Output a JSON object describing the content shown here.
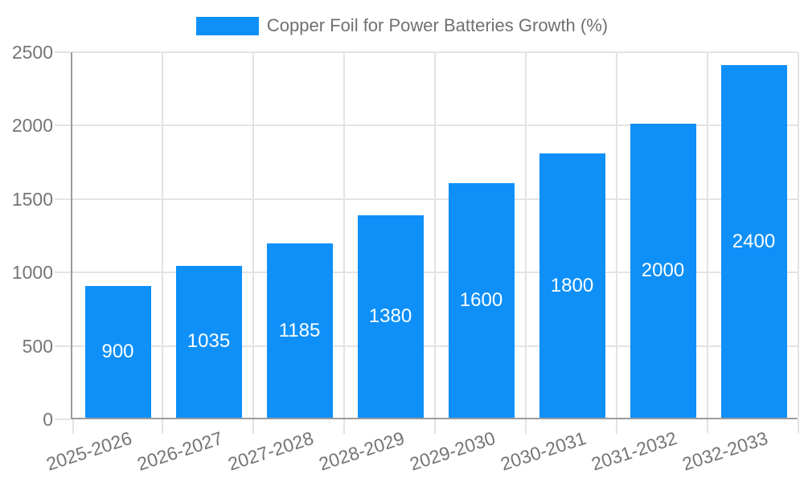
{
  "chart_data": {
    "type": "bar",
    "title": "Copper Foil for Power Batteries Growth (%)",
    "legend": [
      "Copper Foil for Power Batteries Growth (%)"
    ],
    "legend_position": "top-center",
    "categories": [
      "2025-2026",
      "2026-2027",
      "2027-2028",
      "2028-2029",
      "2029-2030",
      "2030-2031",
      "2031-2032",
      "2032-2033"
    ],
    "values": [
      900,
      1035,
      1185,
      1380,
      1600,
      1800,
      2000,
      2400
    ],
    "xlabel": "",
    "ylabel": "",
    "ylim": [
      0,
      2500
    ],
    "yticks": [
      0,
      500,
      1000,
      1500,
      2000,
      2500
    ],
    "grid": true,
    "bar_labels_inside": true,
    "x_label_rotation_deg": -18,
    "colors": {
      "bar": "#0e90f8",
      "bar_label_text": "#ffffff",
      "axis_text": "#757575",
      "legend_text": "#707070",
      "gridline": "#e3e3e3",
      "axis_line": "#9c9c9c",
      "background": "#ffffff"
    }
  }
}
